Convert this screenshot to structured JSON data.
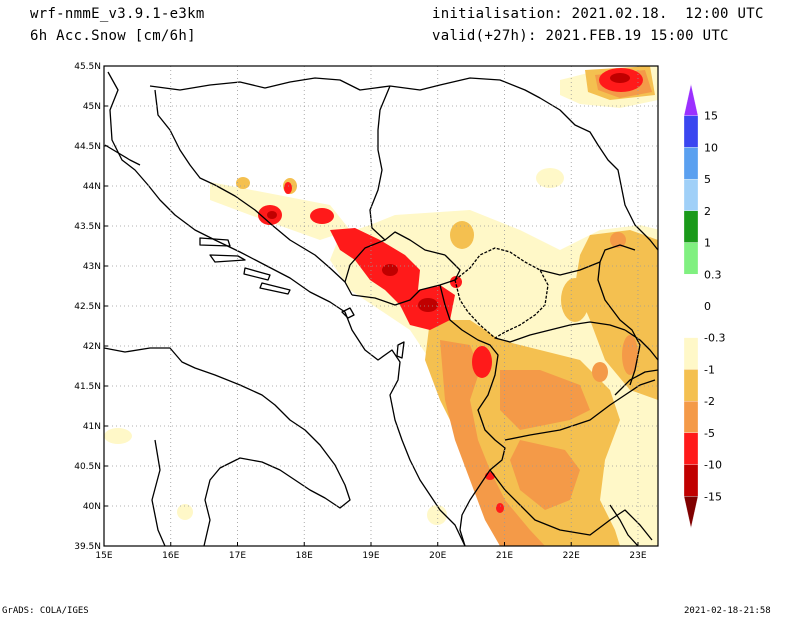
{
  "header": {
    "model": "wrf-nmmE_v3.9.1-e3km",
    "field": "6h Acc.Snow [cm/6h]",
    "init": "initialisation: 2021.02.18.  12:00 UTC",
    "valid": "valid(+27h): 2021.FEB.19 15:00 UTC"
  },
  "footer": {
    "left": "GrADS: COLA/IGES",
    "right": "2021-02-18-21:58"
  },
  "map": {
    "lon_range": [
      15,
      23.3
    ],
    "lat_range": [
      39.5,
      45.5
    ],
    "lon_ticks": [
      "15E",
      "16E",
      "17E",
      "18E",
      "19E",
      "20E",
      "21E",
      "22E",
      "23E"
    ],
    "lat_ticks": [
      "45.5N",
      "45N",
      "44.5N",
      "44N",
      "43.5N",
      "43N",
      "42.5N",
      "42N",
      "41.5N",
      "41N",
      "40.5N",
      "40N",
      "39.5N"
    ]
  },
  "colorbar": {
    "labels": [
      "15",
      "10",
      "5",
      "2",
      "1",
      "0.3",
      "0",
      "-0.3",
      "-1",
      "-2",
      "-5",
      "-10",
      "-15"
    ],
    "colors": [
      "#9b30ff",
      "#3a46f0",
      "#5aa0f0",
      "#a0d0f8",
      "#1a9a1a",
      "#80f080",
      "#ffffff",
      "#ffffff",
      "#fff8c8",
      "#f4c050",
      "#f49a48",
      "#ff1a1a",
      "#c00000",
      "#800000"
    ]
  },
  "snow_colors": {
    "light": "#fff8c8",
    "moderate": "#f4c050",
    "heavy": "#f49a48",
    "very_heavy": "#ff1a1a",
    "extreme": "#c00000"
  }
}
